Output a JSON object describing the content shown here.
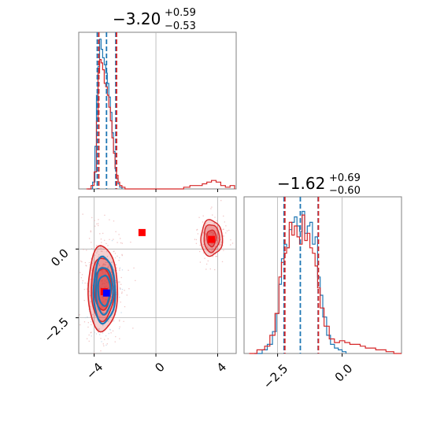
{
  "colors": {
    "blue": "#1f77b4",
    "red": "#d62728",
    "grid": "#b0b0b0",
    "frame": "#808080",
    "marker_red": "#ff0000",
    "marker_blue": "#0000ff"
  },
  "chart_data": {
    "type": "corner",
    "parameters": [
      {
        "title_value": "−3.20",
        "title_upper": "+0.59",
        "title_lower": "−0.53",
        "range": [
          -5,
          5.2
        ],
        "ticks": [
          -4,
          0,
          4
        ],
        "tick_labels": [
          "−4",
          "0",
          "4"
        ],
        "quantiles_blue": [
          -3.8,
          -3.2,
          -2.6
        ],
        "quantiles_red": [
          -3.75,
          -2.6
        ]
      },
      {
        "title_value": "−1.62",
        "title_upper": "+0.69",
        "title_lower": "−0.60",
        "range": [
          -3.8,
          2.3
        ],
        "ticks": [
          -2.5,
          0.0
        ],
        "tick_labels": [
          "−2.5",
          "0.0"
        ],
        "quantiles_blue": [
          -2.25,
          -1.62,
          -0.93
        ],
        "quantiles_red": [
          -2.25,
          -0.95
        ]
      }
    ],
    "histograms": {
      "p1_blue": {
        "x": [
          -4.4,
          -4.1,
          -3.95,
          -3.85,
          -3.75,
          -3.65,
          -3.55,
          -3.45,
          -3.35,
          -3.25,
          -3.15,
          -3.05,
          -2.95,
          -2.85,
          -2.75,
          -2.65,
          -2.55,
          -2.45,
          -2.35,
          -2.2
        ],
        "y": [
          0.0,
          0.04,
          0.25,
          0.55,
          0.72,
          0.88,
          0.82,
          0.77,
          0.73,
          0.68,
          0.62,
          0.54,
          0.45,
          0.33,
          0.22,
          0.12,
          0.06,
          0.03,
          0.01,
          0.0
        ]
      },
      "p1_red": {
        "x": [
          -4.5,
          -4.2,
          -4.0,
          -3.85,
          -3.75,
          -3.65,
          -3.55,
          -3.45,
          -3.35,
          -3.25,
          -3.15,
          -3.05,
          -2.95,
          -2.85,
          -2.75,
          -2.65,
          -2.55,
          -2.45,
          -2.35,
          -2.2,
          -2.0,
          1.8,
          2.2,
          2.6,
          3.0,
          3.3,
          3.6,
          3.9,
          4.2,
          4.5,
          4.8,
          5.1
        ],
        "y": [
          0.0,
          0.02,
          0.1,
          0.4,
          0.68,
          0.76,
          0.74,
          0.7,
          0.62,
          0.6,
          0.55,
          0.48,
          0.4,
          0.3,
          0.21,
          0.12,
          0.08,
          0.04,
          0.02,
          0.01,
          0.0,
          0.01,
          0.02,
          0.02,
          0.03,
          0.04,
          0.05,
          0.04,
          0.02,
          0.01,
          0.02,
          0.0
        ]
      },
      "p2_blue": {
        "x": [
          -3.4,
          -3.1,
          -2.9,
          -2.7,
          -2.55,
          -2.45,
          -2.35,
          -2.25,
          -2.15,
          -2.05,
          -1.95,
          -1.85,
          -1.75,
          -1.65,
          -1.55,
          -1.45,
          -1.35,
          -1.25,
          -1.15,
          -1.05,
          -0.95,
          -0.85,
          -0.75,
          -0.6,
          -0.45,
          -0.3,
          -0.15,
          0.0,
          0.15
        ],
        "y": [
          0.0,
          0.02,
          0.05,
          0.12,
          0.22,
          0.38,
          0.52,
          0.6,
          0.58,
          0.68,
          0.72,
          0.75,
          0.7,
          0.67,
          0.78,
          0.66,
          0.7,
          0.72,
          0.6,
          0.64,
          0.42,
          0.32,
          0.2,
          0.1,
          0.05,
          0.03,
          0.02,
          0.01,
          0.0
        ]
      },
      "p2_red": {
        "x": [
          -3.6,
          -3.3,
          -3.0,
          -2.8,
          -2.6,
          -2.45,
          -2.35,
          -2.25,
          -2.15,
          -2.05,
          -1.95,
          -1.85,
          -1.75,
          -1.65,
          -1.55,
          -1.45,
          -1.35,
          -1.25,
          -1.15,
          -1.05,
          -0.95,
          -0.85,
          -0.7,
          -0.5,
          -0.3,
          -0.1,
          0.1,
          0.3,
          0.5,
          0.7,
          0.9,
          1.1,
          1.3,
          1.5,
          1.7,
          2.0,
          2.3
        ],
        "y": [
          0.0,
          0.02,
          0.04,
          0.1,
          0.22,
          0.42,
          0.5,
          0.55,
          0.58,
          0.72,
          0.65,
          0.7,
          0.64,
          0.6,
          0.76,
          0.62,
          0.66,
          0.58,
          0.55,
          0.48,
          0.36,
          0.25,
          0.15,
          0.08,
          0.06,
          0.07,
          0.06,
          0.05,
          0.05,
          0.04,
          0.03,
          0.03,
          0.02,
          0.02,
          0.01,
          0.0,
          0.0
        ]
      }
    },
    "markers": {
      "red": [
        {
          "x": -0.9,
          "y": 0.6
        },
        {
          "x": 3.6,
          "y": 0.35
        },
        {
          "x": -3.35,
          "y": -1.55
        }
      ],
      "blue": [
        {
          "x": -3.2,
          "y": -1.6
        }
      ]
    },
    "contours": {
      "red_main": {
        "cx": -3.45,
        "cy": -1.45,
        "rx": [
          0.55,
          0.75,
          0.95
        ],
        "ry": [
          0.75,
          1.15,
          1.55
        ]
      },
      "blue_main": {
        "cx": -3.35,
        "cy": -1.5,
        "rx": [
          0.4,
          0.55,
          0.7
        ],
        "ry": [
          0.55,
          0.85,
          1.2
        ]
      },
      "red_second": {
        "cx": 3.6,
        "cy": 0.4,
        "rx": [
          0.3,
          0.5,
          0.7
        ],
        "ry": [
          0.3,
          0.5,
          0.65
        ]
      }
    }
  }
}
